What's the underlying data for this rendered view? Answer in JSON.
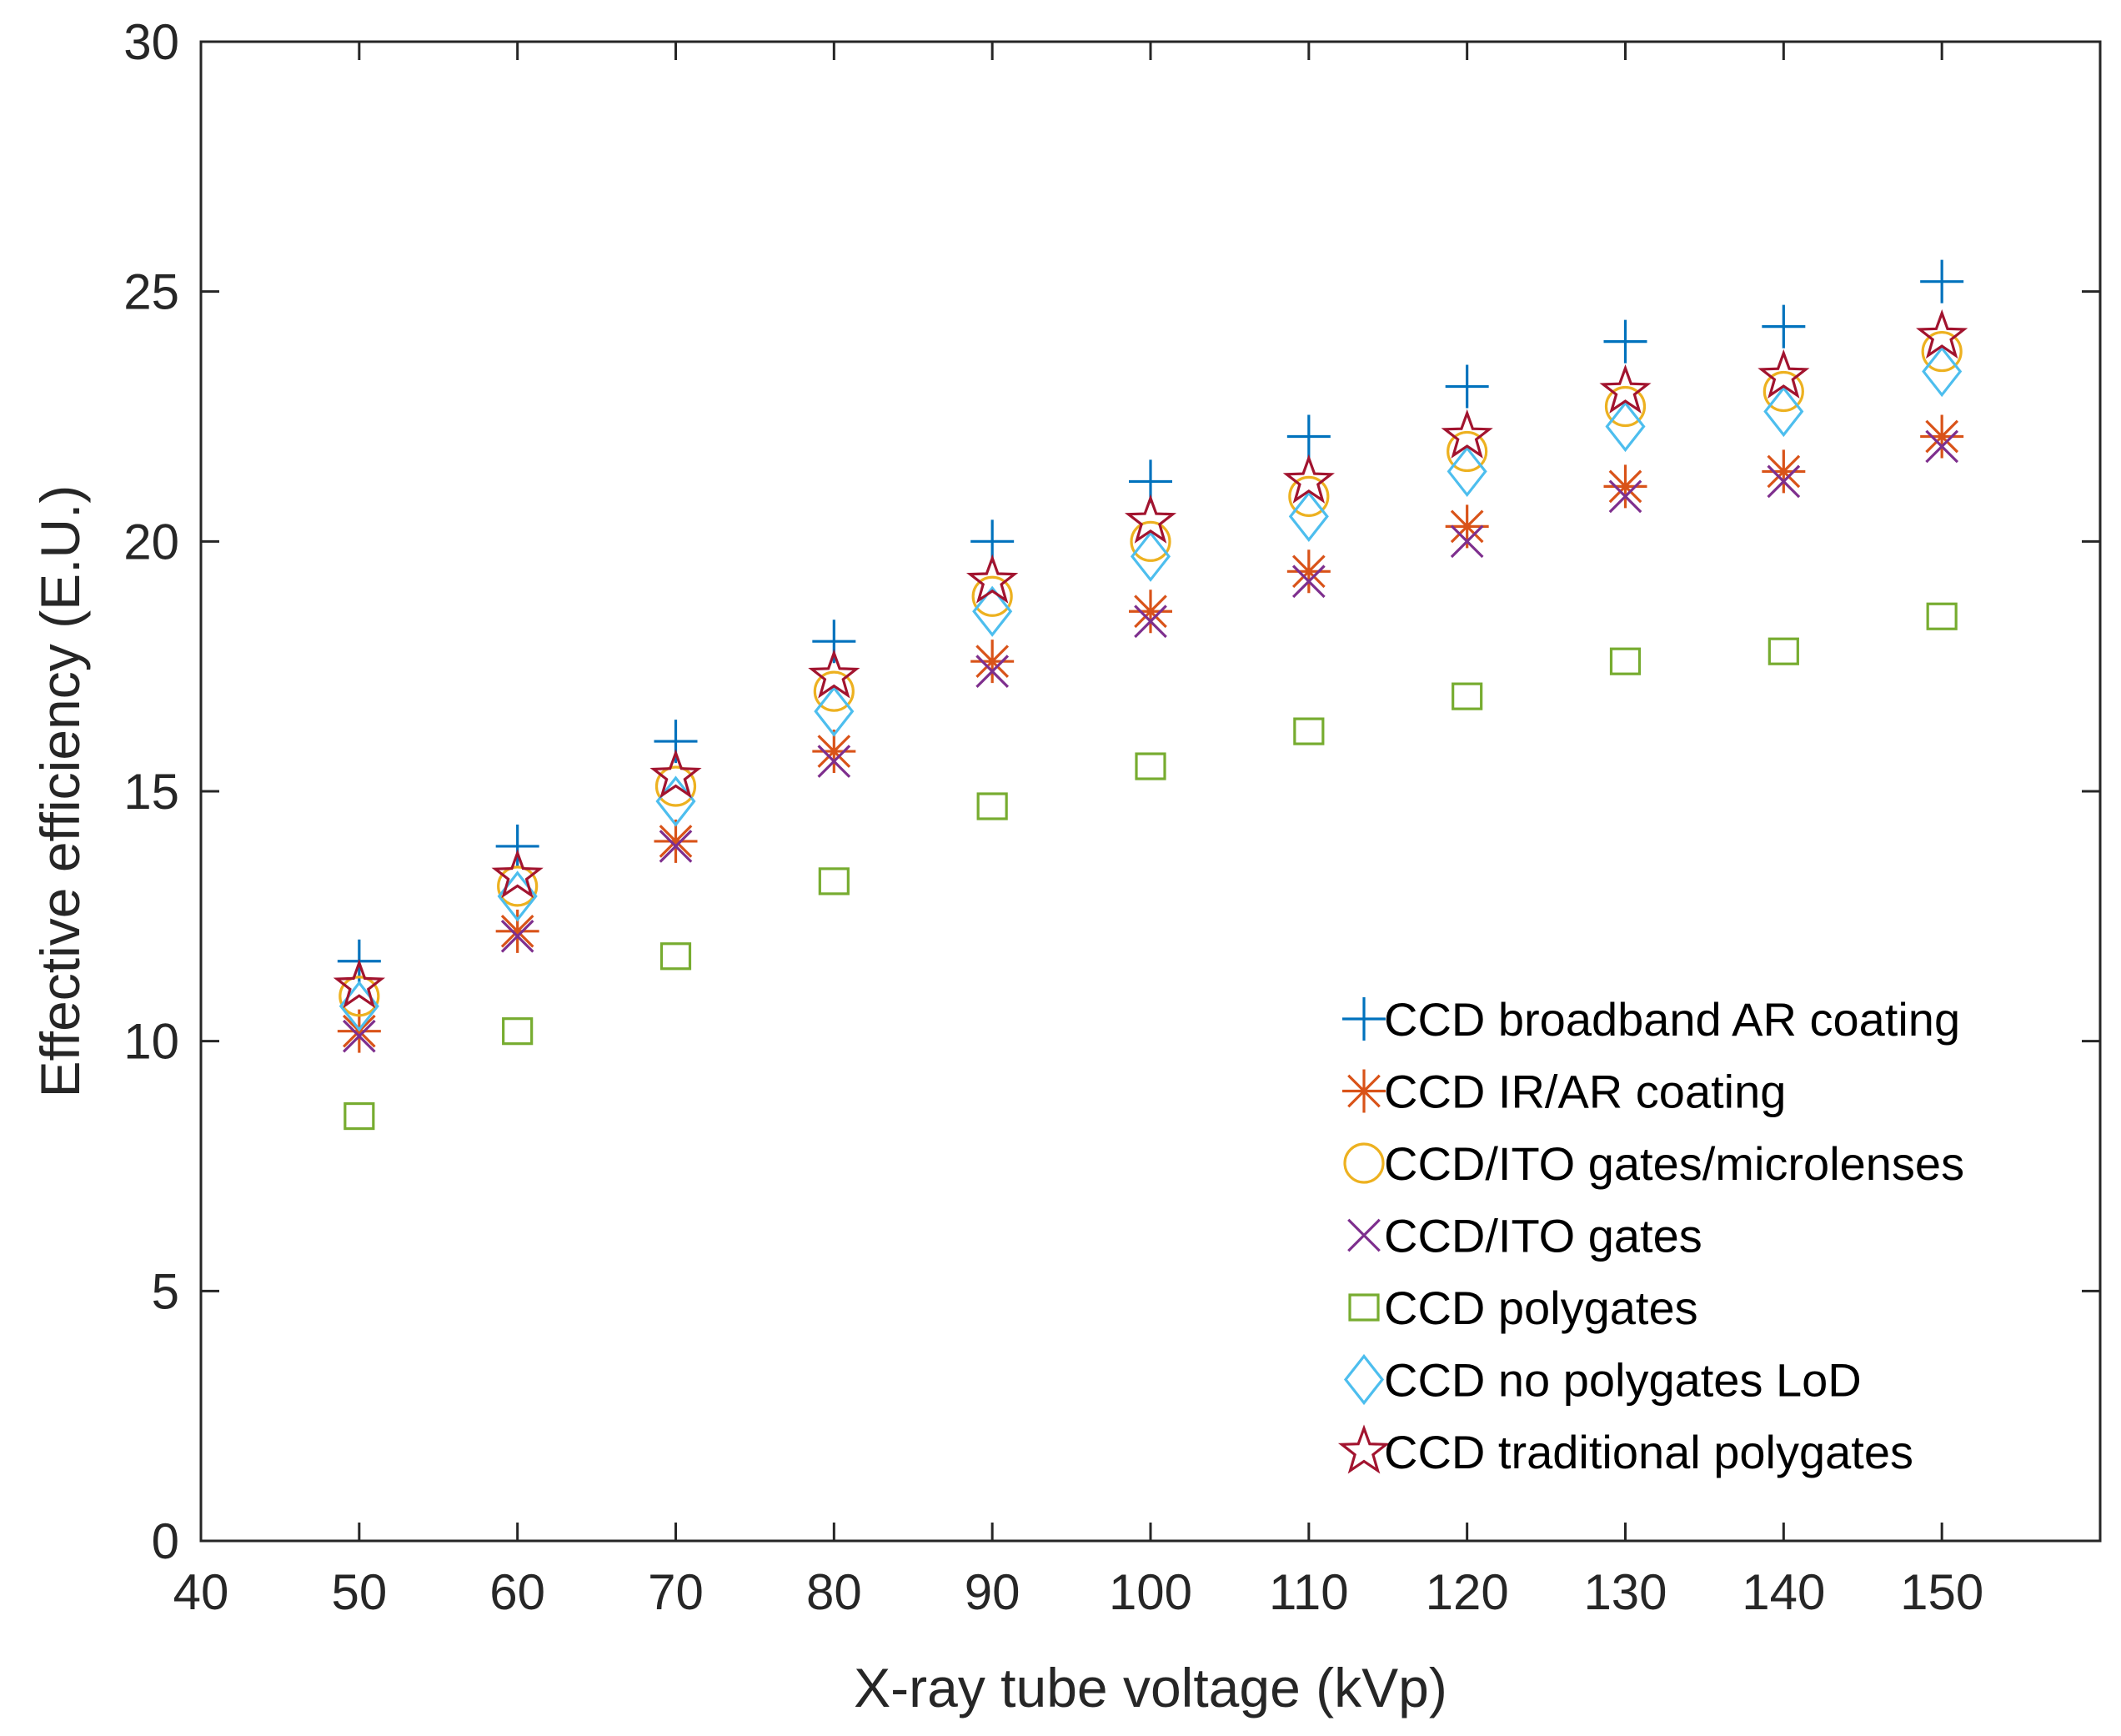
{
  "chart_data": {
    "type": "scatter",
    "title": "",
    "xlabel": "X-ray tube voltage (kVp)",
    "ylabel": "Effective efficiency (E.U.)",
    "xlim": [
      40,
      160
    ],
    "ylim": [
      0,
      30
    ],
    "xticks": [
      40,
      50,
      60,
      70,
      80,
      90,
      100,
      110,
      120,
      130,
      140,
      150
    ],
    "yticks": [
      0,
      5,
      10,
      15,
      20,
      25,
      30
    ],
    "grid": false,
    "legend_position": "bottom-right",
    "x": [
      50,
      60,
      70,
      80,
      90,
      100,
      110,
      120,
      130,
      140,
      150
    ],
    "series": [
      {
        "name": "CCD broadband AR coating",
        "marker": "plus",
        "color": "#0072BD",
        "values": [
          11.6,
          13.9,
          16.0,
          18.0,
          20.0,
          21.2,
          22.1,
          23.1,
          24.0,
          24.3,
          25.2
        ]
      },
      {
        "name": "CCD IR/AR coating",
        "marker": "asterisk",
        "color": "#D95319",
        "values": [
          10.2,
          12.2,
          14.0,
          15.8,
          17.6,
          18.6,
          19.4,
          20.3,
          21.1,
          21.4,
          22.1
        ]
      },
      {
        "name": "CCD/ITO gates/microlenses",
        "marker": "circle",
        "color": "#EDB120",
        "values": [
          10.9,
          13.1,
          15.1,
          17.0,
          18.9,
          20.0,
          20.9,
          21.8,
          22.7,
          23.0,
          23.8
        ]
      },
      {
        "name": "CCD/ITO gates",
        "marker": "x",
        "color": "#7E2F8E",
        "values": [
          10.1,
          12.1,
          13.9,
          15.6,
          17.4,
          18.4,
          19.2,
          20.0,
          20.9,
          21.2,
          21.9
        ]
      },
      {
        "name": "CCD polygates",
        "marker": "square",
        "color": "#77AC30",
        "values": [
          8.5,
          10.2,
          11.7,
          13.2,
          14.7,
          15.5,
          16.2,
          16.9,
          17.6,
          17.8,
          18.5
        ]
      },
      {
        "name": "CCD no polygates LoD",
        "marker": "diamond",
        "color": "#4DBEEE",
        "values": [
          10.7,
          12.9,
          14.8,
          16.6,
          18.6,
          19.7,
          20.5,
          21.4,
          22.3,
          22.6,
          23.4
        ]
      },
      {
        "name": "CCD traditional polygates",
        "marker": "star",
        "color": "#A2142F",
        "values": [
          11.1,
          13.3,
          15.3,
          17.3,
          19.2,
          20.4,
          21.2,
          22.1,
          23.0,
          23.3,
          24.1
        ]
      }
    ]
  }
}
